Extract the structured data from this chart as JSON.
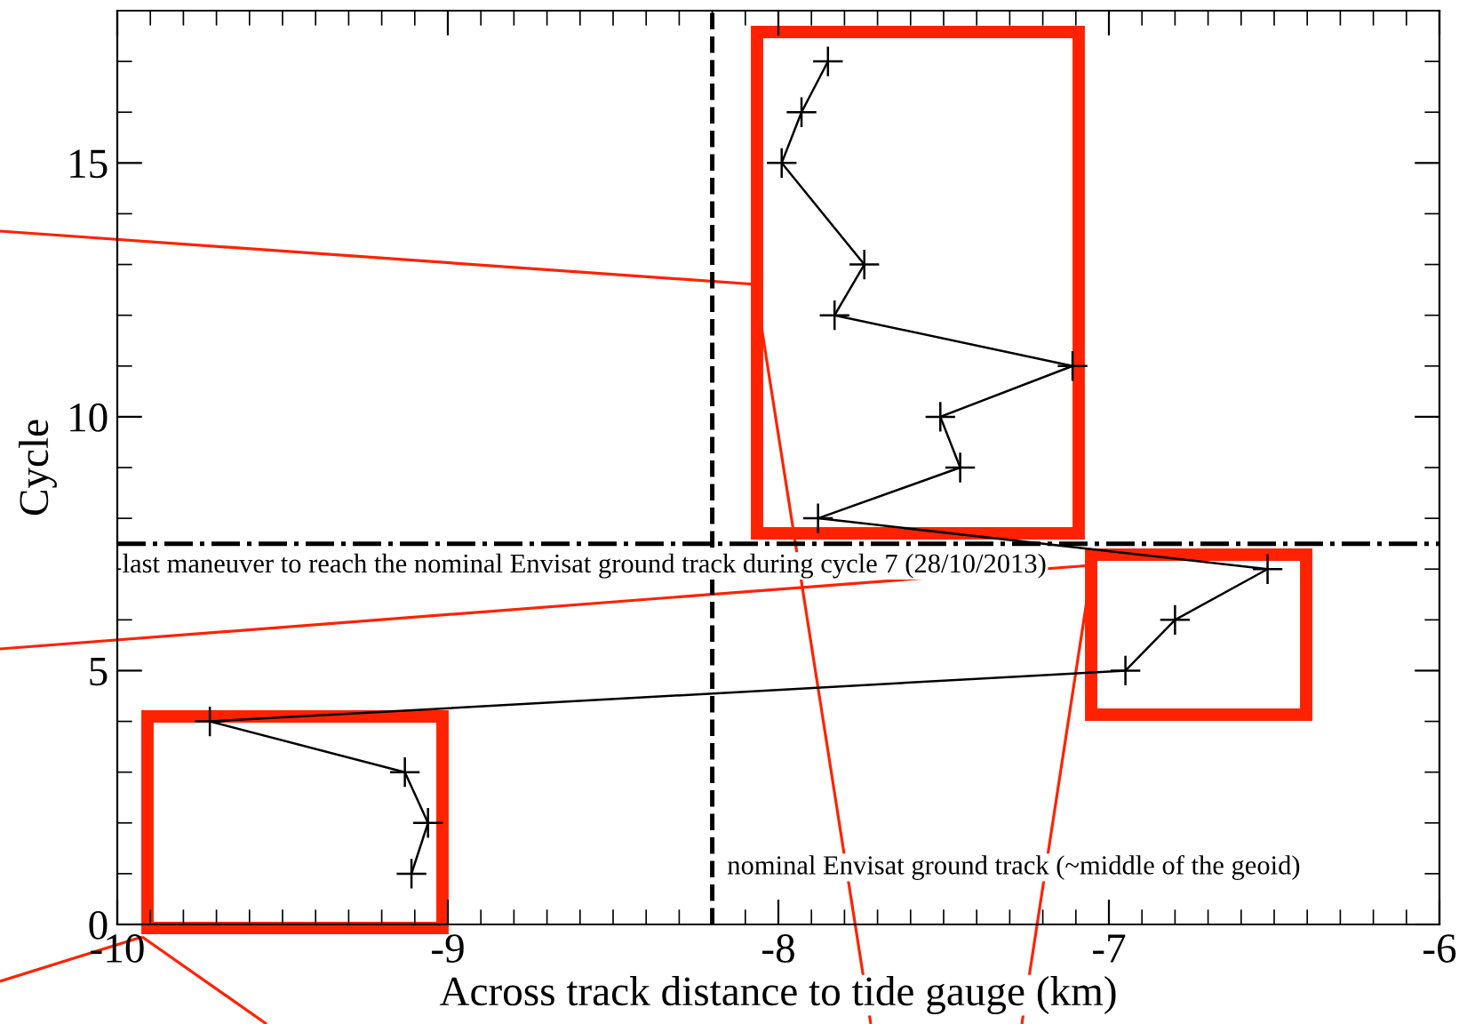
{
  "chart_data": {
    "type": "line",
    "xlabel": "Across track distance to tide gauge (km)",
    "ylabel": "Cycle",
    "x": [
      -9.11,
      -9.06,
      -9.13,
      -9.72,
      -6.95,
      -6.8,
      -6.52,
      -7.88,
      -7.45,
      -7.51,
      -7.11,
      -7.83,
      -7.74,
      -7.99,
      -7.93,
      -7.85
    ],
    "values": [
      1,
      2,
      3,
      4,
      5,
      6,
      7,
      8,
      9,
      10,
      11,
      12,
      13,
      15,
      16,
      17
    ],
    "color": "#000000",
    "marker": "cross",
    "line_style": "solid",
    "xlim": [
      -10,
      -6
    ],
    "xticks": [
      -10,
      -9,
      -8,
      -7,
      -6
    ],
    "ylim": [
      0,
      18
    ],
    "yticks": [
      0,
      5,
      10,
      15
    ],
    "ref_lines": [
      {
        "axis": "x",
        "value": -8.2,
        "label": "nominal Envisat ground track (~middle of the geoid)",
        "color": "#000000",
        "line_style": "dashed"
      },
      {
        "axis": "y",
        "value": 7.5,
        "label": "last maneuver to reach the nominal Envisat ground track during cycle 7 (28/10/2013)",
        "color": "#000000",
        "line_style": "dashdot"
      }
    ],
    "grid": false,
    "legend": false
  }
}
